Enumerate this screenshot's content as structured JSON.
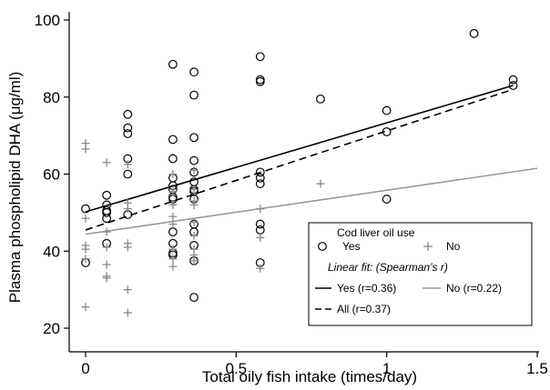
{
  "chart_data": {
    "type": "scatter",
    "title": "",
    "xlabel": "Total oily fish intake (times/day)",
    "ylabel": "Plasma phospholipid DHA (μg/ml)",
    "xlim": [
      0,
      1.5
    ],
    "ylim": [
      20,
      100
    ],
    "xticks": [
      0,
      0.5,
      1,
      1.5
    ],
    "xtick_labels": [
      "0",
      "0.5",
      "1",
      "1.5"
    ],
    "yticks": [
      20,
      40,
      60,
      80,
      100
    ],
    "ytick_labels": [
      "20",
      "40",
      "60",
      "80",
      "100"
    ],
    "grid": false,
    "legend": {
      "position": "bottom-right",
      "title": "Cod liver oil use",
      "yes_label": "Yes",
      "no_label": "No",
      "fit_title": "Linear fit: (Spearman’s r)",
      "fit_yes_label": "Yes (r=0.36)",
      "fit_no_label": "No (r=0.22)",
      "fit_all_label": "All (r=0.37)"
    },
    "series": [
      {
        "name": "Yes",
        "marker": "circle",
        "color": "#000000",
        "points": [
          [
            0,
            51
          ],
          [
            0,
            37
          ],
          [
            0.07,
            54.5
          ],
          [
            0.07,
            52
          ],
          [
            0.07,
            50.5
          ],
          [
            0.07,
            50
          ],
          [
            0.07,
            48.5
          ],
          [
            0.07,
            42
          ],
          [
            0.14,
            75.5
          ],
          [
            0.14,
            72
          ],
          [
            0.14,
            70.5
          ],
          [
            0.14,
            64
          ],
          [
            0.14,
            60
          ],
          [
            0.14,
            49.5
          ],
          [
            0.29,
            88.5
          ],
          [
            0.29,
            69
          ],
          [
            0.29,
            64
          ],
          [
            0.29,
            59
          ],
          [
            0.29,
            57
          ],
          [
            0.29,
            56
          ],
          [
            0.29,
            54
          ],
          [
            0.29,
            53.5
          ],
          [
            0.29,
            45
          ],
          [
            0.29,
            42
          ],
          [
            0.29,
            39.5
          ],
          [
            0.29,
            39
          ],
          [
            0.36,
            86.5
          ],
          [
            0.36,
            80.5
          ],
          [
            0.36,
            69.5
          ],
          [
            0.36,
            63.5
          ],
          [
            0.36,
            60.5
          ],
          [
            0.36,
            58
          ],
          [
            0.36,
            56
          ],
          [
            0.36,
            55.5
          ],
          [
            0.36,
            53.5
          ],
          [
            0.36,
            47
          ],
          [
            0.36,
            45
          ],
          [
            0.36,
            41.5
          ],
          [
            0.36,
            37.5
          ],
          [
            0.36,
            28
          ],
          [
            0.58,
            90.5
          ],
          [
            0.58,
            84.5
          ],
          [
            0.58,
            84
          ],
          [
            0.58,
            60.5
          ],
          [
            0.58,
            59
          ],
          [
            0.58,
            57.5
          ],
          [
            0.58,
            47
          ],
          [
            0.58,
            45.5
          ],
          [
            0.58,
            37
          ],
          [
            0.78,
            79.5
          ],
          [
            1,
            76.5
          ],
          [
            1,
            71
          ],
          [
            1,
            53.5
          ],
          [
            1.29,
            96.5
          ],
          [
            1.42,
            84.5
          ],
          [
            1.42,
            83
          ]
        ]
      },
      {
        "name": "No",
        "marker": "plus",
        "color": "#888888",
        "points": [
          [
            0,
            68
          ],
          [
            0,
            66.5
          ],
          [
            0,
            48.5
          ],
          [
            0,
            41.5
          ],
          [
            0,
            40.5
          ],
          [
            0,
            38
          ],
          [
            0,
            25.5
          ],
          [
            0.07,
            63
          ],
          [
            0.07,
            45
          ],
          [
            0.07,
            41
          ],
          [
            0.07,
            36.5
          ],
          [
            0.07,
            33.5
          ],
          [
            0.07,
            33
          ],
          [
            0.14,
            62.5
          ],
          [
            0.14,
            52.5
          ],
          [
            0.14,
            51
          ],
          [
            0.14,
            42
          ],
          [
            0.14,
            41
          ],
          [
            0.14,
            30
          ],
          [
            0.14,
            24
          ],
          [
            0.29,
            60
          ],
          [
            0.29,
            55.5
          ],
          [
            0.29,
            52
          ],
          [
            0.29,
            49
          ],
          [
            0.29,
            47
          ],
          [
            0.29,
            40.5
          ],
          [
            0.29,
            38
          ],
          [
            0.29,
            36
          ],
          [
            0.36,
            61
          ],
          [
            0.36,
            56
          ],
          [
            0.36,
            53
          ],
          [
            0.36,
            52
          ],
          [
            0.36,
            47.5
          ],
          [
            0.36,
            44
          ],
          [
            0.36,
            40.5
          ],
          [
            0.36,
            39
          ],
          [
            0.36,
            37.5
          ],
          [
            0.58,
            51
          ],
          [
            0.58,
            43.5
          ],
          [
            0.58,
            35.5
          ],
          [
            0.78,
            57.5
          ]
        ]
      }
    ],
    "fit_lines": [
      {
        "name": "Yes (r=0.36)",
        "style": "solid",
        "color": "#000000",
        "x": [
          0,
          1.42
        ],
        "y": [
          50.2,
          83
        ]
      },
      {
        "name": "No (r=0.22)",
        "style": "solid",
        "color": "#999999",
        "x": [
          0,
          1.5
        ],
        "y": [
          44.4,
          61.5
        ]
      },
      {
        "name": "All (r=0.37)",
        "style": "dashed",
        "color": "#000000",
        "x": [
          0,
          1.42
        ],
        "y": [
          45.5,
          82
        ]
      }
    ]
  }
}
